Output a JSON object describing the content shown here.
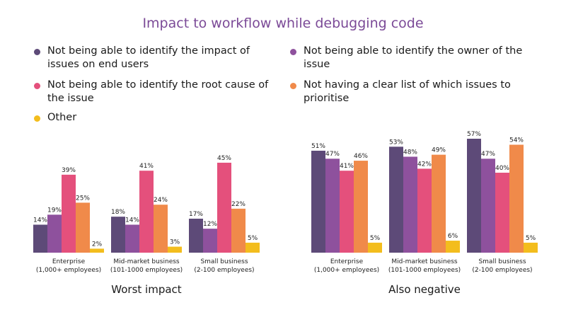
{
  "chart_data": {
    "type": "bar",
    "title": "Impact to workflow while debugging code",
    "series": [
      {
        "name": "Not being able to identify the impact of issues on end users",
        "color": "#5d4a78"
      },
      {
        "name": "Not being able to identify the owner of the issue",
        "color": "#8e519d"
      },
      {
        "name": "Not being able to identify the root cause of the issue",
        "color": "#e4507c"
      },
      {
        "name": "Not having a clear list of which issues to prioritise",
        "color": "#f08a4a"
      },
      {
        "name": "Other",
        "color": "#f3bd1d"
      }
    ],
    "panels": [
      {
        "label": "Worst impact",
        "categories": [
          {
            "line1": "Enterprise",
            "line2": "(1,000+ employees)"
          },
          {
            "line1": "Mid-market business",
            "line2": "(101-1000 employees)"
          },
          {
            "line1": "Small business",
            "line2": "(2-100 employees)"
          }
        ],
        "values": [
          [
            14,
            19,
            39,
            25,
            2
          ],
          [
            18,
            14,
            41,
            24,
            3
          ],
          [
            17,
            12,
            45,
            22,
            5
          ]
        ],
        "ylim": [
          0,
          60
        ]
      },
      {
        "label": "Also negative",
        "categories": [
          {
            "line1": "Enterprise",
            "line2": "(1,000+ employees)"
          },
          {
            "line1": "Mid-market business",
            "line2": "(101-1000 employees)"
          },
          {
            "line1": "Small business",
            "line2": "(2-100 employees)"
          }
        ],
        "values": [
          [
            51,
            47,
            41,
            46,
            5
          ],
          [
            53,
            48,
            42,
            49,
            6
          ],
          [
            57,
            47,
            40,
            54,
            5
          ]
        ],
        "ylim": [
          0,
          60
        ]
      }
    ],
    "value_suffix": "%"
  }
}
